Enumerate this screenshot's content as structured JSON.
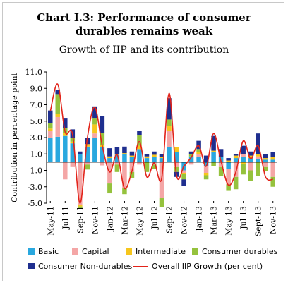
{
  "title_line1": "Chart I.3: Performance of consumer",
  "title_line2": "durables remains weak",
  "subtitle": "Growth of IIP and its contribution",
  "colors": {
    "Basic": "#29a8df",
    "Capital": "#f4a6a6",
    "Intermediate": "#f6c61d",
    "Consumer durables": "#95c23d",
    "Consumer Non-durables": "#1f2f8f",
    "Overall": "#e2231a"
  },
  "legend": {
    "basic": "Basic",
    "capital": "Capital",
    "intermediate": "Intermediate",
    "durables": "Consumer durables",
    "nondurables": "Consumer Non-durables",
    "overall": "Overall IIP Growth (per cent)"
  },
  "chart_data": {
    "type": "bar",
    "stacked": true,
    "title": "Chart I.3: Performance of consumer durables remains weak",
    "subtitle": "Growth of IIP and its contribution",
    "ylabel": "Contribution in percentage point",
    "xlabel": "",
    "ylim": [
      -5.0,
      11.0
    ],
    "yticks": [
      "11.0",
      "9.0",
      "7.0",
      "5.0",
      "3.0",
      "1.0",
      "-1.0",
      "-3.0",
      "-5.0"
    ],
    "ytick_values": [
      11,
      9,
      7,
      5,
      3,
      1,
      -1,
      -3,
      -5
    ],
    "categories": [
      "May-11",
      "Jun-11",
      "Jul-11",
      "Aug-11",
      "Sep-11",
      "Oct-11",
      "Nov-11",
      "Dec-11",
      "Jan-12",
      "Feb-12",
      "Mar-12",
      "Apr-12",
      "May-12",
      "Jun-12",
      "Jul-12",
      "Aug-12",
      "Sep-12",
      "Oct-12",
      "Nov-12",
      "Dec-12",
      "Jan-13",
      "Feb-13",
      "Mar-13",
      "Apr-13",
      "May-13",
      "Jun-13",
      "Jul-13",
      "Aug-13",
      "Sept-13",
      "Oct-13",
      "Nov-13"
    ],
    "xtick_labels": [
      "May-11",
      "Jul-11",
      "Sep-11",
      "Nov-11",
      "Jan-12",
      "Mar-12",
      "May-12",
      "Jul-12",
      "Sep-12",
      "Nov-12",
      "Jan-13",
      "Mar-13",
      "May-13",
      "Jul-13",
      "Sept-13",
      "Nov-13"
    ],
    "series": [
      {
        "name": "Basic",
        "values": [
          3.0,
          3.1,
          3.2,
          2.3,
          1.0,
          1.9,
          3.0,
          1.8,
          0.5,
          0.9,
          1.0,
          0.6,
          1.6,
          0.5,
          0.6,
          0.5,
          1.8,
          1.2,
          -1.0,
          0.7,
          0.6,
          -0.5,
          1.2,
          0.6,
          -0.8,
          0.5,
          0.6,
          0.5,
          0.4,
          0.3,
          0.3
        ]
      },
      {
        "name": "Capital",
        "values": [
          0.8,
          2.4,
          -2.1,
          -0.6,
          -5.2,
          -0.3,
          0.5,
          -0.4,
          -2.6,
          -0.3,
          -3.2,
          -1.2,
          -0.3,
          0.0,
          -0.3,
          -4.4,
          2.0,
          -0.6,
          -0.3,
          -0.3,
          0.4,
          -0.8,
          0.0,
          -0.6,
          -1.9,
          -1.8,
          0.4,
          -1.0,
          0.3,
          -0.6,
          -1.8
        ]
      },
      {
        "name": "Intermediate",
        "values": [
          0.3,
          0.4,
          0.4,
          0.2,
          -0.2,
          0.3,
          1.1,
          0.3,
          0.2,
          0.1,
          0.1,
          0.2,
          0.4,
          0.2,
          0.3,
          0.1,
          0.6,
          0.6,
          -0.1,
          0.0,
          0.2,
          -0.3,
          0.2,
          0.0,
          0.2,
          0.3,
          -0.2,
          0.3,
          0.3,
          0.2,
          0.3
        ]
      },
      {
        "name": "Consumer durables",
        "values": [
          0.7,
          2.4,
          0.6,
          0.5,
          -0.2,
          -0.6,
          0.8,
          1.5,
          -1.2,
          -0.9,
          -0.7,
          -0.7,
          1.3,
          -1.2,
          -0.5,
          -1.1,
          0.8,
          -0.6,
          -0.7,
          0.3,
          0.4,
          -0.5,
          -0.5,
          -1.1,
          -0.8,
          -1.5,
          -1.3,
          -1.3,
          -1.7,
          -0.5,
          -1.2
        ]
      },
      {
        "name": "Consumer Non-durables",
        "values": [
          1.5,
          0.5,
          1.2,
          1.0,
          0.3,
          0.8,
          1.4,
          2.0,
          1.0,
          0.8,
          0.8,
          0.5,
          0.5,
          0.3,
          0.4,
          0.4,
          2.6,
          -0.6,
          -0.8,
          0.3,
          1.0,
          0.8,
          1.8,
          1.0,
          0.3,
          0.2,
          1.0,
          0.5,
          2.5,
          0.5,
          0.6
        ]
      },
      {
        "name": "Overall IIP Growth (per cent)",
        "type": "line",
        "values": [
          6.2,
          9.5,
          3.7,
          3.4,
          -5.0,
          3.0,
          6.7,
          2.0,
          -1.2,
          0.9,
          -3.2,
          -1.1,
          2.5,
          -1.8,
          -0.1,
          -2.0,
          8.4,
          -1.6,
          -0.5,
          0.6,
          2.0,
          -0.5,
          3.5,
          0.1,
          -2.8,
          -1.2,
          2.6,
          0.4,
          2.0,
          -1.8,
          -2.1
        ]
      }
    ],
    "legend_position": "bottom",
    "grid": false
  }
}
